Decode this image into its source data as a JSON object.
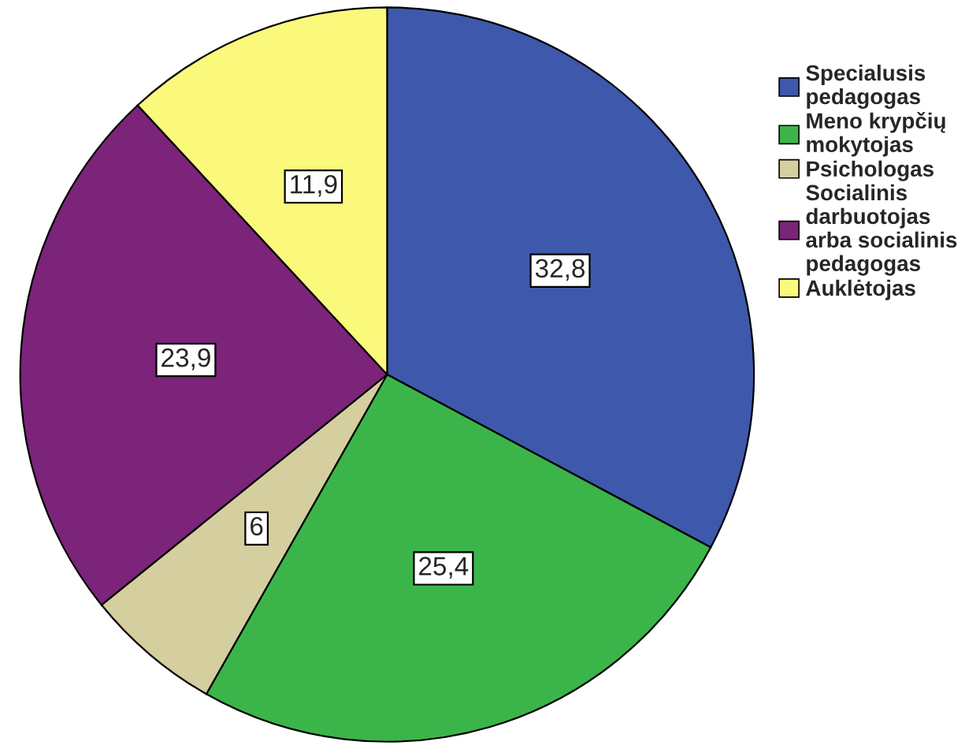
{
  "chart_data": {
    "type": "pie",
    "categories": [
      "Specialusis\npedagogas",
      "Meno krypčių\nmokytojas",
      "Psichologas",
      "Socialinis\ndarbuotojas\narba socialinis\npedagogas",
      "Auklėtojas"
    ],
    "values": [
      32.8,
      25.4,
      6,
      23.9,
      11.9
    ],
    "value_labels": [
      "32,8",
      "25,4",
      "6",
      "23,9",
      "11,9"
    ],
    "colors": [
      "#3e58ac",
      "#3bb54a",
      "#d5ce9f",
      "#7b2479",
      "#fbf97c"
    ],
    "legend": "top right"
  }
}
